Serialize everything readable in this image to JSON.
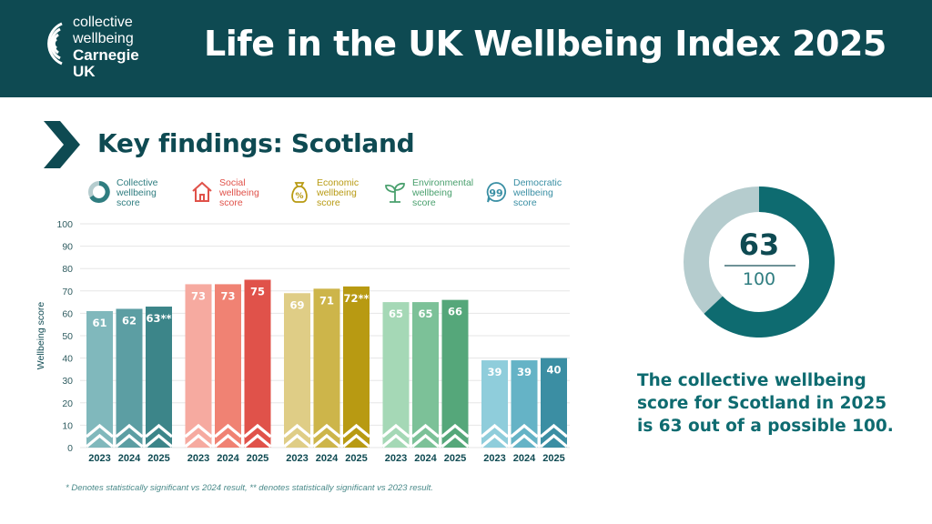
{
  "header": {
    "logo_lines": [
      "collective",
      "wellbeing",
      "Carnegie",
      "UK"
    ],
    "title": "Life in the UK Wellbeing Index 2025"
  },
  "subtitle": "Key findings: Scotland",
  "legend": [
    {
      "icon": "ring-icon",
      "lines": [
        "Collective",
        "wellbeing",
        "score"
      ],
      "color": "#2f7d80"
    },
    {
      "icon": "house-icon",
      "lines": [
        "Social",
        "wellbeing",
        "score"
      ],
      "color": "#e0524a"
    },
    {
      "icon": "money-bag-icon",
      "lines": [
        "Economic",
        "wellbeing",
        "score"
      ],
      "color": "#b89a12"
    },
    {
      "icon": "seedling-icon",
      "lines": [
        "Environmental",
        "wellbeing",
        "score"
      ],
      "color": "#4aa06e"
    },
    {
      "icon": "speech-bubble-icon",
      "lines": [
        "Democratic",
        "wellbeing",
        "score"
      ],
      "color": "#3a8fa4"
    }
  ],
  "chart_data": {
    "type": "bar",
    "ylabel": "Wellbeing score",
    "ylim": [
      0,
      100
    ],
    "yticks": [
      0,
      10,
      20,
      30,
      40,
      50,
      60,
      70,
      80,
      90,
      100
    ],
    "grid": true,
    "groups": [
      {
        "name": "Collective wellbeing score",
        "categories": [
          "2023",
          "2024",
          "2025"
        ],
        "values": [
          61,
          62,
          63
        ],
        "labels": [
          "61",
          "62",
          "63**"
        ],
        "colors": [
          "#80b8bc",
          "#5c9ea3",
          "#3c8589"
        ]
      },
      {
        "name": "Social wellbeing score",
        "categories": [
          "2023",
          "2024",
          "2025"
        ],
        "values": [
          73,
          73,
          75
        ],
        "labels": [
          "73",
          "73",
          "75"
        ],
        "colors": [
          "#f6aaa0",
          "#f08273",
          "#e0524a"
        ]
      },
      {
        "name": "Economic wellbeing score",
        "categories": [
          "2023",
          "2024",
          "2025"
        ],
        "values": [
          69,
          71,
          72
        ],
        "labels": [
          "69",
          "71",
          "72**"
        ],
        "colors": [
          "#dfcd86",
          "#cdb54a",
          "#b89a12"
        ]
      },
      {
        "name": "Environmental wellbeing score",
        "categories": [
          "2023",
          "2024",
          "2025"
        ],
        "values": [
          65,
          65,
          66
        ],
        "labels": [
          "65",
          "65",
          "66"
        ],
        "colors": [
          "#a5d8b6",
          "#7cc198",
          "#55a77a"
        ]
      },
      {
        "name": "Democratic wellbeing score",
        "categories": [
          "2023",
          "2024",
          "2025"
        ],
        "values": [
          39,
          39,
          40
        ],
        "labels": [
          "39",
          "39",
          "40"
        ],
        "colors": [
          "#8fcddb",
          "#65b3c6",
          "#3b8ea3"
        ]
      }
    ]
  },
  "donut": {
    "value": 63,
    "value_label": "63",
    "total_label": "100",
    "fill_color": "#0e6b70",
    "rest_color": "#b5ccce"
  },
  "summary": "The collective wellbeing score for Scotland in 2025 is 63 out of a possible 100.",
  "footnote": "* Denotes statistically significant vs 2024 result, ** denotes statistically significant vs 2023 result."
}
